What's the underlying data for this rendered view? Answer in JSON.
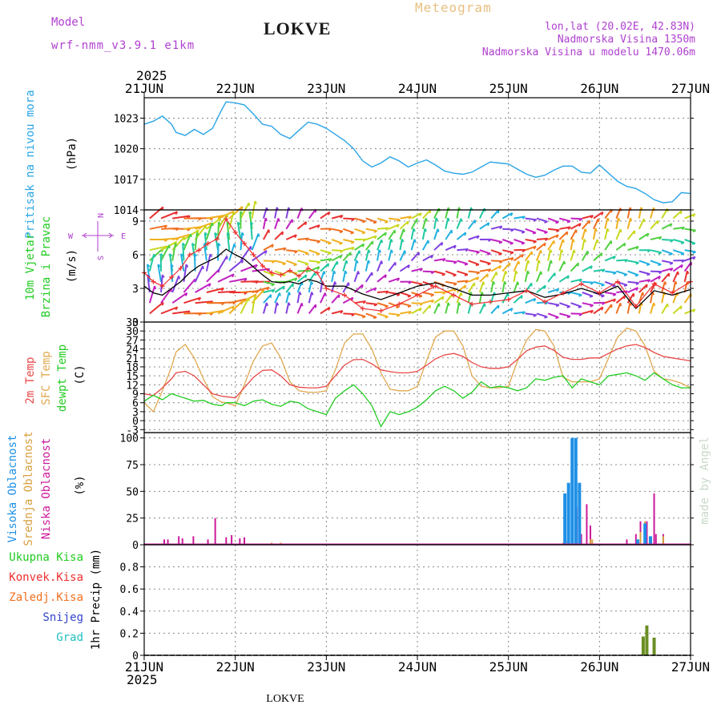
{
  "header": {
    "model_label": "Model",
    "model_name": "wrf-nmm_v3.9.1 e1km",
    "station": "LOKVE",
    "product": "Meteogram",
    "lonlat": "lon,lat (20.02E, 42.83N)",
    "elevation": "Nadmorska Visina 1350m",
    "model_elevation": "Nadmorska Visina u modelu 1470.06m",
    "year_top": "2025",
    "year_bottom": "2025",
    "footer_station": "LOKVE",
    "credit": "made by Angel"
  },
  "colors": {
    "pressure": "#2aa5e6",
    "wind_speed": "#000000",
    "wind_gust": "#ee3030",
    "temp_2m": "#e84848",
    "temp_sfc": "#e0a850",
    "dewpoint": "#22cc22",
    "cloud_high": "#1e90e6",
    "cloud_mid": "#d8a040",
    "cloud_low": "#cc1a9a",
    "total_precip": "#22cc22",
    "convective": "#ee3030",
    "frozen": "#f07020",
    "snow": "#3344cc",
    "hail": "#20c0c0",
    "label_purple": "#b040d0",
    "label_orange": "#e8b860"
  },
  "chart_data": [
    {
      "type": "line",
      "title": "Pritisak na nivou mora",
      "ylabel": "(hPa)",
      "x_ticks": [
        "21JUN",
        "22JUN",
        "23JUN",
        "24JUN",
        "25JUN",
        "26JUN",
        "27JUN"
      ],
      "ylim": [
        1014,
        1025
      ],
      "y_ticks": [
        1014,
        1017,
        1020,
        1023
      ],
      "grid": true,
      "series": [
        {
          "x": [
            0,
            0.1,
            0.2,
            0.3,
            0.35,
            0.45,
            0.55,
            0.65,
            0.75,
            0.85,
            0.9,
            1.0,
            1.1,
            1.2,
            1.3,
            1.4,
            1.5,
            1.6,
            1.7,
            1.8,
            1.9,
            2.0,
            2.1,
            2.2,
            2.3,
            2.4,
            2.5,
            2.6,
            2.7,
            2.8,
            2.9,
            3.0,
            3.1,
            3.2,
            3.3,
            3.4,
            3.5,
            3.6,
            3.7,
            3.8,
            3.9,
            4.0,
            4.1,
            4.2,
            4.3,
            4.4,
            4.5,
            4.6,
            4.7,
            4.8,
            4.9,
            5.0,
            5.1,
            5.2,
            5.3,
            5.4,
            5.5,
            5.6,
            5.7,
            5.8,
            5.9,
            6.0
          ],
          "values": [
            1022.4,
            1022.7,
            1023.2,
            1022.4,
            1021.6,
            1021.3,
            1021.9,
            1021.4,
            1022.0,
            1023.8,
            1024.6,
            1024.5,
            1024.3,
            1023.4,
            1022.4,
            1022.2,
            1021.4,
            1021.0,
            1021.8,
            1022.6,
            1022.4,
            1022.0,
            1021.4,
            1020.8,
            1020.0,
            1018.8,
            1018.2,
            1018.6,
            1019.2,
            1018.8,
            1018.2,
            1018.6,
            1018.9,
            1018.4,
            1017.8,
            1017.6,
            1017.5,
            1017.7,
            1018.2,
            1018.7,
            1018.6,
            1018.5,
            1018.0,
            1017.5,
            1017.2,
            1017.4,
            1017.9,
            1018.3,
            1018.3,
            1017.7,
            1017.6,
            1018.4,
            1017.6,
            1016.8,
            1016.3,
            1016.1,
            1015.6,
            1015.0,
            1014.7,
            1014.8,
            1015.7,
            1015.6
          ]
        }
      ]
    },
    {
      "type": "line",
      "title": "10m Vjetar Brzina i Pravac",
      "ylabel": "(m/s)",
      "compass": {
        "n": "N",
        "w": "W",
        "e": "E",
        "s": "S"
      },
      "ylim": [
        0,
        10
      ],
      "y_ticks": [
        0,
        3,
        6,
        9
      ],
      "series": [
        {
          "name": "speed",
          "x": [
            0,
            0.1,
            0.2,
            0.3,
            0.4,
            0.5,
            0.6,
            0.7,
            0.8,
            0.9,
            1.0,
            1.1,
            1.2,
            1.3,
            1.4,
            1.5,
            1.6,
            1.7,
            1.8,
            1.9,
            2.0,
            2.2,
            2.4,
            2.6,
            2.8,
            3.0,
            3.2,
            3.4,
            3.6,
            3.8,
            4.0,
            4.2,
            4.4,
            4.6,
            4.8,
            5.0,
            5.2,
            5.4,
            5.6,
            5.8,
            6.0
          ],
          "values": [
            3.2,
            2.6,
            2.4,
            3.0,
            3.6,
            4.4,
            5.0,
            5.4,
            5.8,
            6.5,
            6.0,
            5.6,
            4.9,
            4.2,
            3.6,
            3.5,
            3.6,
            3.4,
            3.8,
            3.6,
            3.2,
            3.2,
            2.5,
            2.0,
            2.6,
            3.2,
            3.5,
            3.0,
            2.4,
            2.4,
            2.6,
            2.8,
            2.2,
            2.5,
            3.0,
            2.5,
            3.2,
            1.2,
            2.8,
            2.4,
            2.9
          ]
        },
        {
          "name": "gust",
          "x": [
            0,
            0.1,
            0.2,
            0.3,
            0.4,
            0.5,
            0.6,
            0.7,
            0.8,
            0.9,
            1.0,
            1.1,
            1.2,
            1.3,
            1.4,
            1.5,
            1.6,
            1.7,
            1.8,
            1.9,
            2.0,
            2.2,
            2.4,
            2.6,
            2.8,
            3.0,
            3.2,
            3.4,
            3.6,
            3.8,
            4.0,
            4.2,
            4.4,
            4.6,
            4.8,
            5.0,
            5.2,
            5.4,
            5.6,
            5.8,
            6.0
          ],
          "values": [
            4.4,
            3.6,
            3.2,
            4.0,
            4.8,
            6.0,
            6.4,
            7.0,
            7.4,
            9.2,
            8.0,
            7.0,
            6.0,
            5.0,
            4.4,
            4.2,
            4.6,
            4.1,
            4.8,
            4.4,
            3.0,
            2.4,
            1.2,
            1.0,
            1.6,
            2.4,
            3.2,
            2.4,
            1.6,
            1.8,
            2.0,
            2.8,
            1.8,
            2.6,
            3.4,
            2.6,
            3.6,
            1.4,
            3.4,
            2.6,
            3.6
          ]
        }
      ]
    },
    {
      "type": "line",
      "title": "2m Temp / SFC Temp / dewpt Temp",
      "series_labels": [
        "2m Temp",
        "SFC Temp",
        "dewpt Temp"
      ],
      "ylabel": "(C)",
      "ylim": [
        -4,
        33
      ],
      "y_ticks": [
        -3,
        0,
        3,
        6,
        9,
        12,
        15,
        18,
        21,
        24,
        27,
        30,
        33
      ],
      "series": [
        {
          "name": "2m Temp",
          "x": [
            0,
            0.1,
            0.2,
            0.3,
            0.35,
            0.45,
            0.55,
            0.65,
            0.75,
            0.85,
            0.9,
            1.0,
            1.1,
            1.2,
            1.3,
            1.4,
            1.5,
            1.6,
            1.7,
            1.8,
            1.9,
            2.0,
            2.1,
            2.2,
            2.3,
            2.4,
            2.5,
            2.6,
            2.7,
            2.8,
            2.9,
            3.0,
            3.1,
            3.2,
            3.3,
            3.4,
            3.5,
            3.6,
            3.7,
            3.8,
            3.9,
            4.0,
            4.1,
            4.2,
            4.3,
            4.4,
            4.5,
            4.6,
            4.7,
            4.8,
            4.9,
            5.0,
            5.1,
            5.2,
            5.3,
            5.4,
            5.5,
            5.6,
            5.7,
            5.8,
            5.9,
            6.0
          ],
          "values": [
            9,
            8.4,
            11,
            14,
            16,
            16.5,
            15,
            12,
            9,
            8.2,
            8,
            7.6,
            11,
            14.5,
            16.8,
            17,
            15,
            12,
            11.2,
            11,
            11,
            11.5,
            15,
            18.6,
            20.4,
            20.5,
            19,
            17,
            16.4,
            16,
            16,
            16.5,
            18.5,
            20.7,
            22,
            22.5,
            21.5,
            19.5,
            18,
            17.5,
            17.5,
            18,
            20.5,
            23.4,
            24.6,
            25,
            23.5,
            21.2,
            20.5,
            20.5,
            21,
            21,
            22.5,
            24,
            25,
            25.5,
            24.5,
            22.8,
            21.5,
            21,
            20.5,
            20
          ]
        },
        {
          "name": "SFC Temp",
          "x": [
            0,
            0.1,
            0.2,
            0.3,
            0.35,
            0.45,
            0.55,
            0.65,
            0.75,
            0.85,
            0.9,
            1.0,
            1.1,
            1.2,
            1.3,
            1.4,
            1.5,
            1.6,
            1.7,
            1.8,
            1.9,
            2.0,
            2.1,
            2.2,
            2.3,
            2.4,
            2.5,
            2.6,
            2.7,
            2.8,
            2.9,
            3.0,
            3.1,
            3.2,
            3.3,
            3.4,
            3.5,
            3.6,
            3.7,
            3.8,
            3.9,
            4.0,
            4.1,
            4.2,
            4.3,
            4.4,
            4.5,
            4.6,
            4.7,
            4.8,
            4.9,
            5.0,
            5.1,
            5.2,
            5.3,
            5.4,
            5.5,
            5.6,
            5.7,
            5.8,
            5.9,
            6.0
          ],
          "values": [
            6,
            3,
            10,
            18,
            23,
            25.5,
            21,
            14,
            8,
            6.2,
            6,
            5,
            12,
            20,
            25,
            26,
            21,
            13,
            10,
            9.5,
            9.5,
            10,
            17,
            26,
            29,
            29,
            24,
            16,
            10.5,
            10,
            10,
            11.5,
            20,
            28,
            30,
            30,
            25,
            15,
            11.5,
            11,
            11,
            11.5,
            20,
            27,
            30.5,
            30,
            25,
            14.5,
            13,
            13,
            13,
            14,
            21,
            28,
            31,
            30,
            25,
            16.5,
            14,
            13.5,
            12.5,
            11
          ]
        },
        {
          "name": "dewpt Temp",
          "x": [
            0,
            0.1,
            0.2,
            0.3,
            0.35,
            0.45,
            0.55,
            0.65,
            0.75,
            0.85,
            0.9,
            1.0,
            1.1,
            1.2,
            1.3,
            1.4,
            1.5,
            1.6,
            1.7,
            1.8,
            1.9,
            2.0,
            2.1,
            2.2,
            2.3,
            2.4,
            2.5,
            2.6,
            2.7,
            2.8,
            2.9,
            3.0,
            3.1,
            3.2,
            3.3,
            3.4,
            3.5,
            3.6,
            3.7,
            3.8,
            3.9,
            4.0,
            4.1,
            4.2,
            4.3,
            4.4,
            4.5,
            4.6,
            4.7,
            4.8,
            4.9,
            5.0,
            5.1,
            5.2,
            5.3,
            5.4,
            5.5,
            5.6,
            5.7,
            5.8,
            5.9,
            6.0
          ],
          "values": [
            6.5,
            8.5,
            7,
            9,
            8.5,
            7.5,
            6.5,
            6.8,
            5.5,
            5,
            6,
            6,
            5,
            6.5,
            7,
            5.5,
            4.8,
            6.5,
            6,
            4,
            3,
            2,
            7.5,
            10,
            12,
            9,
            5,
            -2,
            3,
            2,
            3,
            4.5,
            7,
            10,
            11.5,
            10,
            7.5,
            9.5,
            13,
            11,
            11.5,
            11,
            10,
            11,
            14,
            13.5,
            14.5,
            15,
            11,
            14,
            13,
            12,
            15,
            15.5,
            16,
            15,
            13.5,
            16,
            14,
            12,
            11,
            11
          ]
        }
      ]
    },
    {
      "type": "bar",
      "title": "Visoka Oblacnost / Srednja Oblacnost / Niska Oblacnost",
      "series_labels": [
        "Visoka Oblacnost",
        "Srednja Oblacnost",
        "Niska Oblacnost"
      ],
      "ylabel": "(%)",
      "ylim": [
        0,
        105
      ],
      "y_ticks": [
        0,
        25,
        50,
        75,
        100
      ],
      "series": [
        {
          "name": "Niska Oblacnost",
          "x": [
            0.22,
            0.26,
            0.38,
            0.42,
            0.54,
            0.7,
            0.78,
            0.9,
            0.96,
            1.05,
            1.1,
            4.65,
            4.7,
            4.75,
            4.8,
            4.86,
            4.9,
            5.3,
            5.4,
            5.45,
            5.52,
            5.6,
            5.62,
            5.7
          ],
          "values": [
            5,
            5,
            8,
            6,
            8,
            5,
            25,
            7,
            9,
            6,
            7,
            4,
            18,
            35,
            10,
            38,
            18,
            5,
            10,
            22,
            22,
            48,
            10,
            10
          ]
        },
        {
          "name": "Srednja Oblacnost",
          "x": [
            1.4,
            1.5,
            4.6,
            4.65,
            4.9,
            4.92,
            5.45,
            5.5,
            5.55,
            5.7
          ],
          "values": [
            2,
            2,
            2,
            2,
            5,
            5,
            12,
            22,
            7,
            8
          ]
        },
        {
          "name": "Visoka Oblacnost",
          "x": [
            4.62,
            4.66,
            4.7,
            4.74,
            4.78,
            5.42,
            5.5,
            5.56
          ],
          "values": [
            48,
            58,
            100,
            100,
            58,
            5,
            20,
            8
          ]
        }
      ]
    },
    {
      "type": "bar",
      "title": "Ukupna Kisa / Konvek.Kisa / Zaledj.Kisa / Snijeg / Grad",
      "series_labels": [
        "Ukupna Kisa",
        "Konvek.Kisa",
        "Zaledj.Kisa",
        "Snijeg",
        "Grad"
      ],
      "ylabel": "1hr Precip (mm)",
      "ylim": [
        0,
        1.0
      ],
      "y_ticks": [
        0,
        0.2,
        0.4,
        0.6,
        0.8
      ],
      "series": [
        {
          "name": "Ukupna Kisa",
          "x": [
            5.48,
            5.52,
            5.6
          ],
          "values": [
            0.17,
            0.27,
            0.16
          ]
        }
      ]
    }
  ]
}
